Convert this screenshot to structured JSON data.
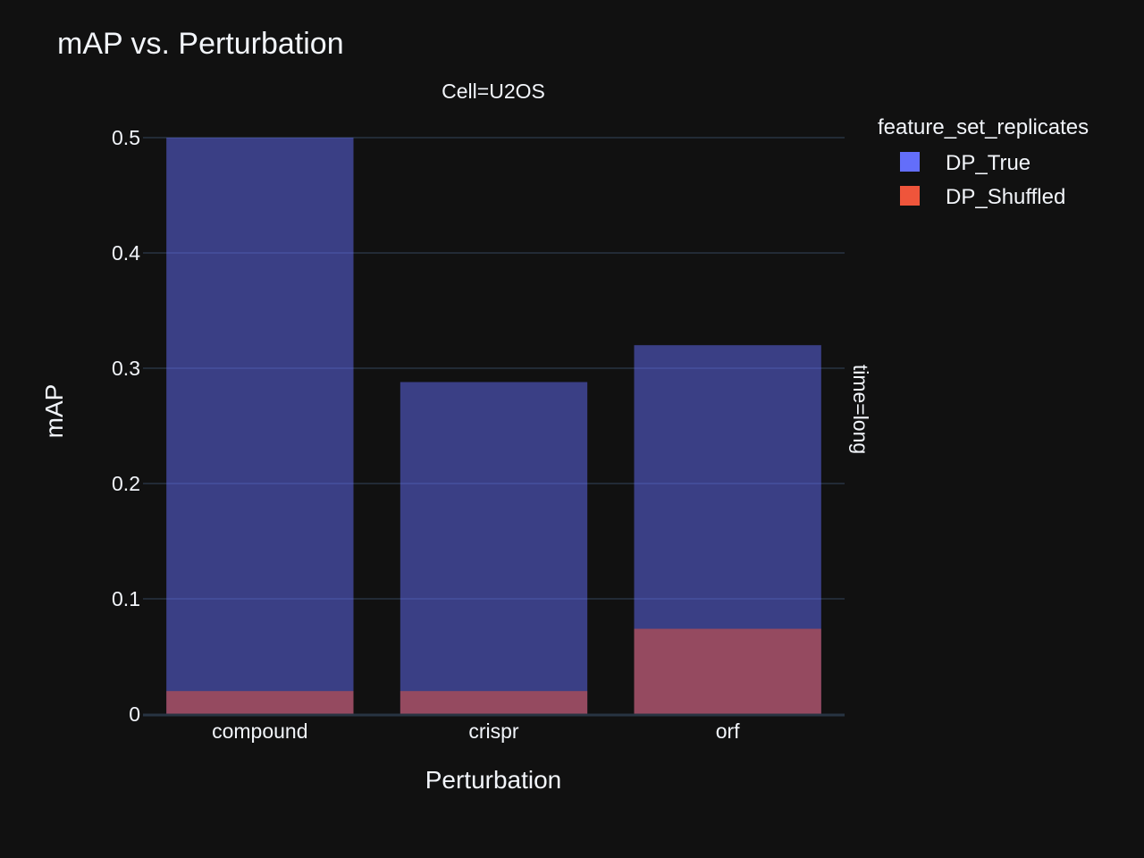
{
  "chart_data": {
    "type": "bar",
    "barmode": "overlay",
    "title": "mAP vs. Perturbation",
    "facet_col_label": "Cell=U2OS",
    "facet_row_label": "time=long",
    "xlabel": "Perturbation",
    "ylabel": "mAP",
    "categories": [
      "compound",
      "crispr",
      "orf"
    ],
    "ylim": [
      0,
      0.5
    ],
    "yticks": [
      0,
      0.1,
      0.2,
      0.3,
      0.4,
      0.5
    ],
    "ytick_labels": [
      "0",
      "0.1",
      "0.2",
      "0.3",
      "0.4",
      "0.5"
    ],
    "grid": true,
    "legend": {
      "title": "feature_set_replicates",
      "placement": "top-right"
    },
    "series": [
      {
        "name": "DP_True",
        "values": [
          0.5,
          0.288,
          0.32
        ],
        "color": "#636efa"
      },
      {
        "name": "DP_Shuffled",
        "values": [
          0.02,
          0.02,
          0.074
        ],
        "color": "#ef553b"
      }
    ],
    "colors": {
      "background": "#111111",
      "grid": "#283442",
      "text": "#f2f5fa"
    }
  }
}
